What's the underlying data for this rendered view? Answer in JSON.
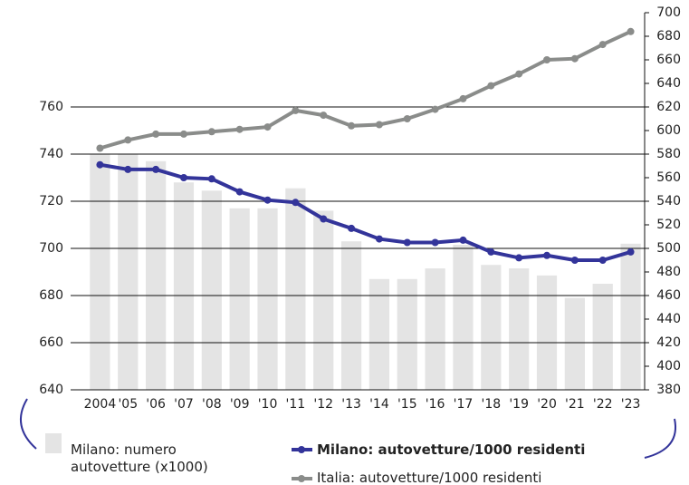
{
  "chart_data": {
    "type": "bar",
    "categories": [
      "2004",
      "'05",
      "'06",
      "'07",
      "'08",
      "'09",
      "'10",
      "'11",
      "'12",
      "'13",
      "'14",
      "'15",
      "'16",
      "'17",
      "'18",
      "'19",
      "'20",
      "'21",
      "'22",
      "'23"
    ],
    "series": [
      {
        "name": "Milano: numero autovetture (x1000)",
        "type": "bar",
        "axis": "y",
        "color": "#e4e4e4",
        "values": [
          740,
          740,
          737,
          728,
          724.5,
          717,
          717,
          725.5,
          716,
          703,
          687,
          687,
          691.5,
          701.5,
          693,
          691.5,
          688.5,
          679,
          685,
          702
        ]
      },
      {
        "name": "Milano: autovetture/1000 residenti",
        "type": "line",
        "axis": "y2",
        "color": "#33349a",
        "values": [
          571,
          567,
          567,
          560,
          559,
          548,
          541,
          539,
          525,
          517,
          508,
          505,
          505,
          507,
          497,
          492,
          494,
          490,
          490,
          497
        ]
      },
      {
        "name": "Italia: autovetture/1000 residenti",
        "type": "line",
        "axis": "y2",
        "color": "#8a8c8a",
        "values": [
          585,
          592,
          597,
          597,
          599,
          601,
          603,
          617,
          613,
          604,
          605,
          610,
          618,
          627,
          638,
          648,
          660,
          661,
          673,
          684
        ]
      }
    ],
    "ylim": [
      640,
      800
    ],
    "yticks": [
      640,
      660,
      680,
      700,
      720,
      740,
      760
    ],
    "y2lim": [
      380,
      700
    ],
    "y2ticks": [
      380,
      400,
      420,
      440,
      460,
      480,
      500,
      520,
      540,
      560,
      580,
      600,
      620,
      640,
      660,
      680,
      700
    ],
    "grid": true
  }
}
